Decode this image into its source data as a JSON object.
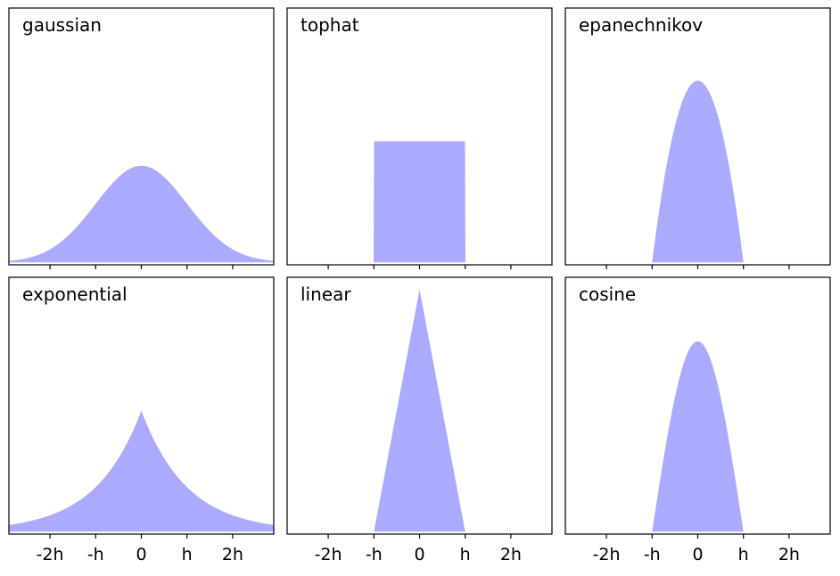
{
  "chart_data": {
    "type": "area",
    "layout": {
      "rows": 2,
      "cols": 3
    },
    "fill_color": "#aaaaff",
    "xlim": [
      -2.9,
      2.9
    ],
    "ylim": [
      -0.01,
      1.05
    ],
    "x_ticks": [
      {
        "value": -2,
        "label": "-2h"
      },
      {
        "value": -1,
        "label": "-h"
      },
      {
        "value": 0,
        "label": "0"
      },
      {
        "value": 1,
        "label": "h"
      },
      {
        "value": 2,
        "label": "2h"
      }
    ],
    "tick_labels_on_bottom_row_only": true,
    "y_ticks": [],
    "panels": [
      {
        "kernel": "gaussian",
        "title": "gaussian",
        "peak_value": 0.399
      },
      {
        "kernel": "tophat",
        "title": "tophat",
        "peak_value": 0.5
      },
      {
        "kernel": "epanechnikov",
        "title": "epanechnikov",
        "peak_value": 0.75
      },
      {
        "kernel": "exponential",
        "title": "exponential",
        "peak_value": 0.5
      },
      {
        "kernel": "linear",
        "title": "linear",
        "peak_value": 1.0
      },
      {
        "kernel": "cosine",
        "title": "cosine",
        "peak_value": 0.785
      }
    ]
  }
}
